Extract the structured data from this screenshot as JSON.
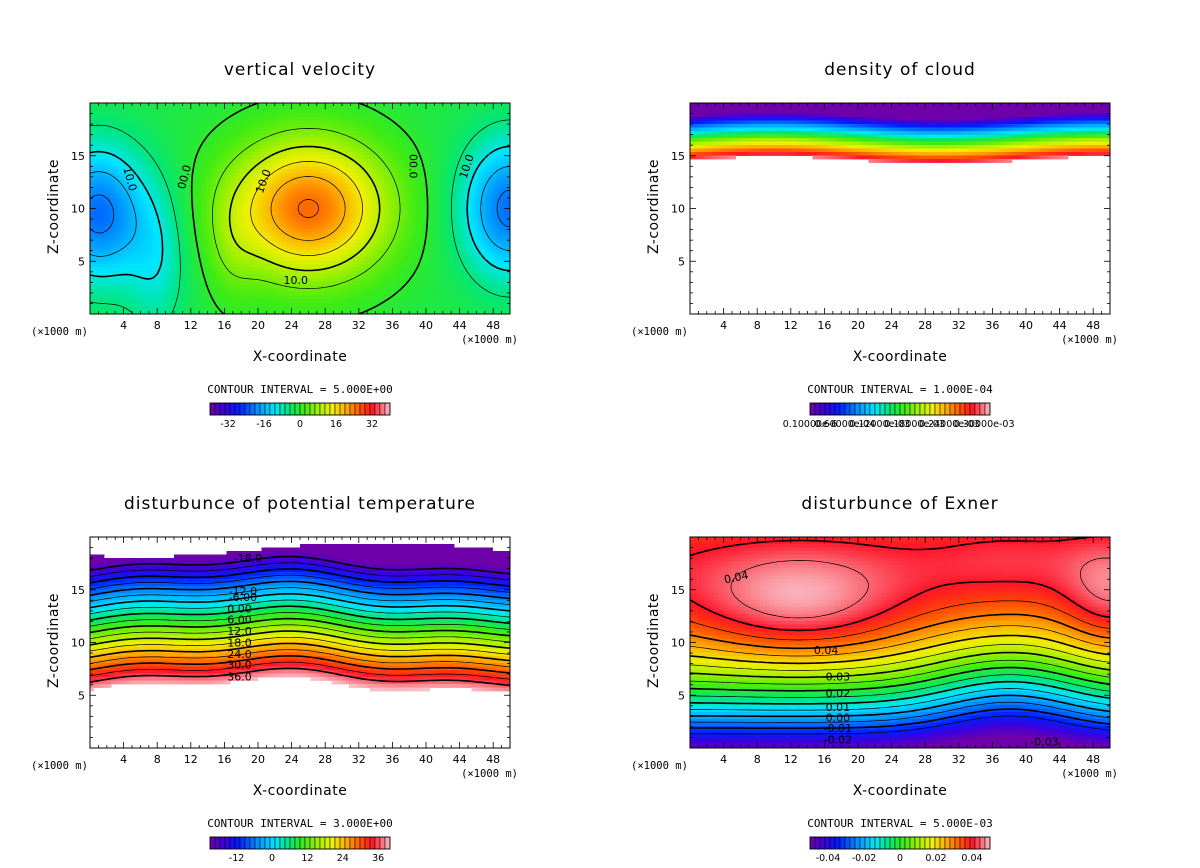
{
  "chart_data": [
    {
      "type": "contour",
      "title": "vertical velocity",
      "xlabel": "X-coordinate",
      "ylabel": "Z-coordinate",
      "xunit_left": "(×1000 m)",
      "xunit_right": "(×1000 m)",
      "xlim": [
        0,
        50
      ],
      "ylim": [
        0,
        20
      ],
      "xticks": [
        "4",
        "8",
        "12",
        "16",
        "20",
        "24",
        "28",
        "32",
        "36",
        "40",
        "44",
        "48"
      ],
      "xtick_values": [
        4,
        8,
        12,
        16,
        20,
        24,
        28,
        32,
        36,
        40,
        44,
        48
      ],
      "yticks": [
        "5",
        "10",
        "15"
      ],
      "ytick_values": [
        5,
        10,
        15
      ],
      "contour_interval": "CONTOUR INTERVAL = 5.000E+00",
      "colorbar_labels": [
        "-32",
        "-16",
        "0",
        "16",
        "32"
      ],
      "colorbar_label_values": [
        -32,
        -16,
        0,
        16,
        32
      ],
      "colorbar_range": [
        -40,
        40
      ],
      "contour_labels": [
        {
          "text": "10.0",
          "x": 4.8,
          "z": 12.8,
          "rot": 75
        },
        {
          "text": "00.0",
          "x": 11.2,
          "z": 13.0,
          "rot": -75
        },
        {
          "text": "10.0",
          "x": 20.6,
          "z": 12.6,
          "rot": -70
        },
        {
          "text": "10.0",
          "x": 24.5,
          "z": 3.2,
          "rot": 0
        },
        {
          "text": "00.0",
          "x": 38.5,
          "z": 14.0,
          "rot": 90
        },
        {
          "text": "10.0",
          "x": 44.8,
          "z": 14.0,
          "rot": -72
        }
      ]
    },
    {
      "type": "contour",
      "title": "density of cloud",
      "xlabel": "X-coordinate",
      "ylabel": "Z-coordinate",
      "xunit_left": "(×1000 m)",
      "xunit_right": "(×1000 m)",
      "xlim": [
        0,
        50
      ],
      "ylim": [
        0,
        20
      ],
      "xticks": [
        "4",
        "8",
        "12",
        "16",
        "20",
        "24",
        "28",
        "32",
        "36",
        "40",
        "44",
        "48"
      ],
      "xtick_values": [
        4,
        8,
        12,
        16,
        20,
        24,
        28,
        32,
        36,
        40,
        44,
        48
      ],
      "yticks": [
        "5",
        "10",
        "15"
      ],
      "ytick_values": [
        5,
        10,
        15
      ],
      "contour_interval": "CONTOUR INTERVAL = 1.000E-04",
      "colorbar_labels": [
        "0.10000e-6",
        "0.60000e-04",
        "0.12000e-03",
        "0.18000e-03",
        "0.24000e-03",
        "0.30000e-03"
      ],
      "colorbar_label_values": [
        1e-07,
        6e-05,
        0.00012,
        0.00018,
        0.00024,
        0.0003
      ],
      "colorbar_range": [
        0,
        0.00031
      ],
      "contour_labels": []
    },
    {
      "type": "contour",
      "title": "disturbunce of potential temperature",
      "xlabel": "X-coordinate",
      "ylabel": "Z-coordinate",
      "xunit_left": "(×1000 m)",
      "xunit_right": "(×1000 m)",
      "xlim": [
        0,
        50
      ],
      "ylim": [
        0,
        20
      ],
      "xticks": [
        "4",
        "8",
        "12",
        "16",
        "20",
        "24",
        "28",
        "32",
        "36",
        "40",
        "44",
        "48"
      ],
      "xtick_values": [
        4,
        8,
        12,
        16,
        20,
        24,
        28,
        32,
        36,
        40,
        44,
        48
      ],
      "yticks": [
        "5",
        "10",
        "15"
      ],
      "ytick_values": [
        5,
        10,
        15
      ],
      "contour_interval": "CONTOUR INTERVAL = 3.000E+00",
      "colorbar_labels": [
        "-12",
        "0",
        "12",
        "24",
        "36"
      ],
      "colorbar_label_values": [
        -12,
        0,
        12,
        24,
        36
      ],
      "colorbar_range": [
        -21,
        40
      ],
      "contour_labels": [
        {
          "text": "-18.0",
          "x": 18.8,
          "z": 18.0,
          "rot": 0
        },
        {
          "text": "-12.0",
          "x": 18.2,
          "z": 14.9,
          "rot": 0
        },
        {
          "text": "-6.00",
          "x": 18.2,
          "z": 14.3,
          "rot": 0
        },
        {
          "text": "0.00",
          "x": 17.8,
          "z": 13.2,
          "rot": 0
        },
        {
          "text": "6.00",
          "x": 17.8,
          "z": 12.2,
          "rot": 0
        },
        {
          "text": "12.0",
          "x": 17.8,
          "z": 11.1,
          "rot": 0
        },
        {
          "text": "18.0",
          "x": 17.8,
          "z": 10.0,
          "rot": 0
        },
        {
          "text": "24.0",
          "x": 17.8,
          "z": 8.9,
          "rot": 0
        },
        {
          "text": "30.0",
          "x": 17.8,
          "z": 7.9,
          "rot": 0
        },
        {
          "text": "36.0",
          "x": 17.8,
          "z": 6.8,
          "rot": 0
        }
      ]
    },
    {
      "type": "contour",
      "title": "disturbunce of Exner",
      "xlabel": "X-coordinate",
      "ylabel": "Z-coordinate",
      "xunit_left": "(×1000 m)",
      "xunit_right": "(×1000 m)",
      "xlim": [
        0,
        50
      ],
      "ylim": [
        0,
        20
      ],
      "xticks": [
        "4",
        "8",
        "12",
        "16",
        "20",
        "24",
        "28",
        "32",
        "36",
        "40",
        "44",
        "48"
      ],
      "xtick_values": [
        4,
        8,
        12,
        16,
        20,
        24,
        28,
        32,
        36,
        40,
        44,
        48
      ],
      "yticks": [
        "5",
        "10",
        "15"
      ],
      "ytick_values": [
        5,
        10,
        15
      ],
      "contour_interval": "CONTOUR INTERVAL = 5.000E-03",
      "colorbar_labels": [
        "-0.04",
        "-0.02",
        "0",
        "0.02",
        "0.04"
      ],
      "colorbar_label_values": [
        -0.04,
        -0.02,
        0,
        0.02,
        0.04
      ],
      "colorbar_range": [
        -0.05,
        0.05
      ],
      "contour_labels": [
        {
          "text": "0.04",
          "x": 5.5,
          "z": 16.2,
          "rot": -12
        },
        {
          "text": "0.04",
          "x": 16.2,
          "z": 9.3,
          "rot": 0
        },
        {
          "text": "0.03",
          "x": 17.6,
          "z": 6.8,
          "rot": 0
        },
        {
          "text": "0.02",
          "x": 17.6,
          "z": 5.2,
          "rot": 0
        },
        {
          "text": "0.01",
          "x": 17.6,
          "z": 3.9,
          "rot": 0
        },
        {
          "text": "0.00",
          "x": 17.6,
          "z": 2.9,
          "rot": 0
        },
        {
          "text": "-0.01",
          "x": 17.6,
          "z": 1.9,
          "rot": 0
        },
        {
          "text": "-0.02",
          "x": 17.6,
          "z": 0.8,
          "rot": 0
        },
        {
          "text": "-0.03",
          "x": 42.2,
          "z": 0.6,
          "rot": 0
        }
      ]
    }
  ]
}
